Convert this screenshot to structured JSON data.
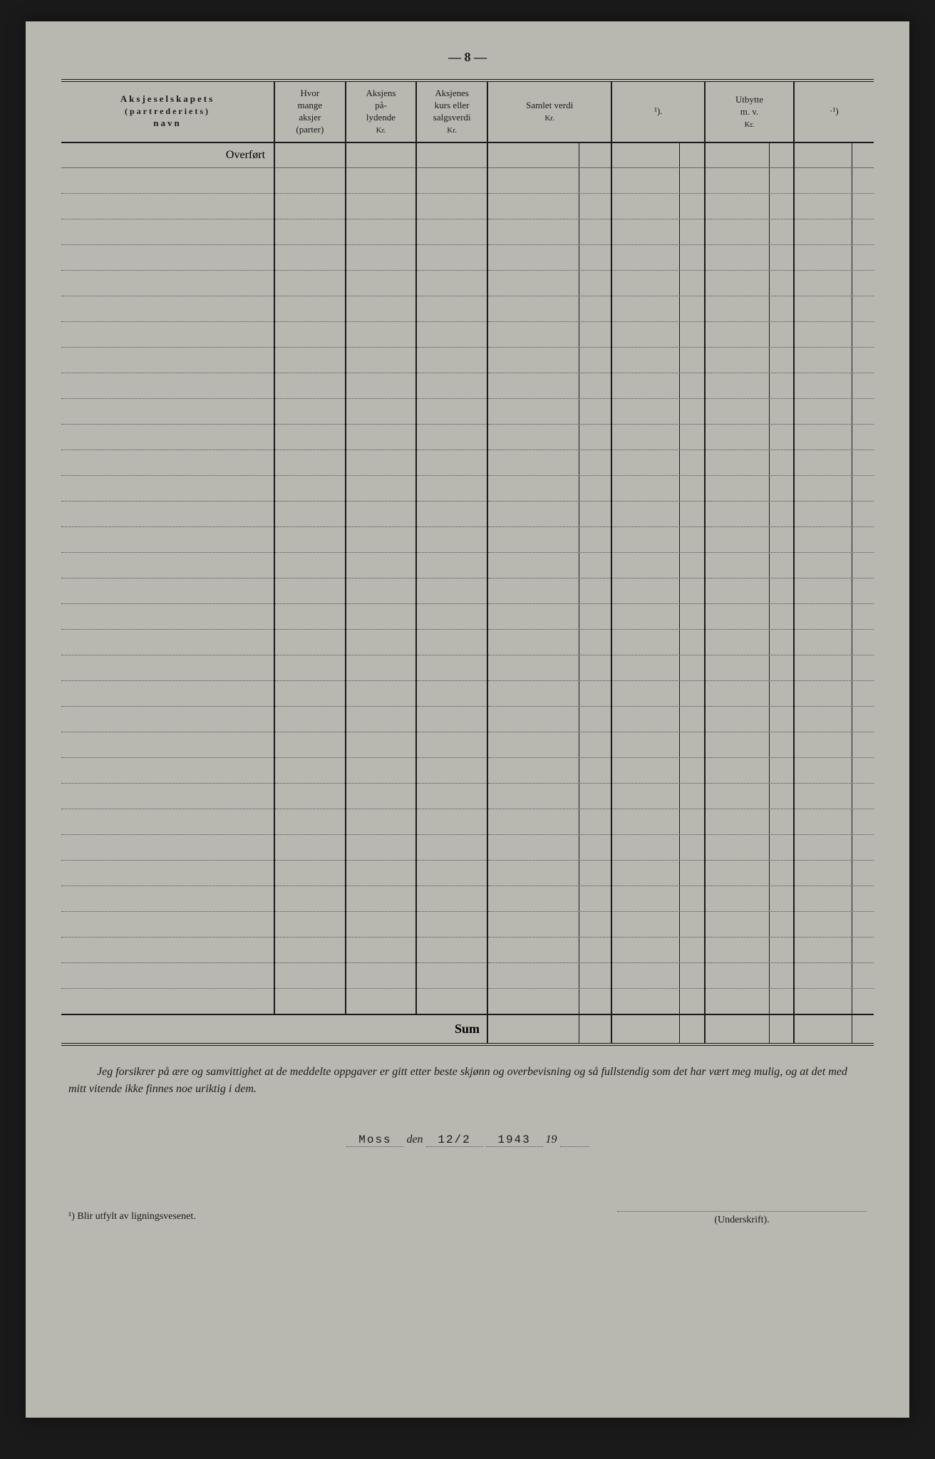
{
  "page_number": "— 8 —",
  "table": {
    "columns": [
      {
        "id": "navn",
        "header_line1": "Aksjeselskapets",
        "header_line2": "(partrederiets)",
        "header_line3": "navn",
        "width": "24%",
        "has_sub": false
      },
      {
        "id": "hvor",
        "header_line1": "Hvor",
        "header_line2": "mange",
        "header_line3": "aksjer",
        "header_line4": "(parter)",
        "width": "8%",
        "has_sub": false
      },
      {
        "id": "aksjens",
        "header_line1": "Aksjens",
        "header_line2": "på-",
        "header_line3": "lydende",
        "sub": "Kr.",
        "width": "8%",
        "has_sub": false
      },
      {
        "id": "aksjenes",
        "header_line1": "Aksjenes",
        "header_line2": "kurs eller",
        "header_line3": "salgsverdi",
        "sub": "Kr.",
        "width": "8%",
        "has_sub": false
      },
      {
        "id": "samlet",
        "header_line1": "Samlet verdi",
        "sub": "Kr.",
        "width": "14%",
        "has_sub": true
      },
      {
        "id": "blank1",
        "header_line1": "¹).",
        "width": "10.5%",
        "has_sub": true
      },
      {
        "id": "utbytte",
        "header_line1": "Utbytte",
        "header_line2": "m. v.",
        "sub": "Kr.",
        "width": "10%",
        "has_sub": true
      },
      {
        "id": "blank2",
        "header_line1": "·¹)",
        "width": "9%",
        "has_sub": true
      }
    ],
    "overfort_label": "Overført",
    "sum_label": "Sum",
    "data_rows": 33
  },
  "declaration": "Jeg forsikrer på ære og samvittighet at de meddelte oppgaver er gitt etter beste skjønn og overbevisning og så fullstendig som det har vært meg mulig, og at det med mitt vitende ikke finnes noe uriktig i dem.",
  "signature": {
    "place": "Moss",
    "den_label": "den",
    "date": "12/2",
    "year_prefix": "19",
    "year_suffix": "43",
    "year_end": "19"
  },
  "footnote": "¹) Blir utfylt av ligningsvesenet.",
  "underskrift_label": "(Underskrift).",
  "colors": {
    "paper": "#b8b8b0",
    "ink": "#1a1a1a",
    "background": "#1a1a1a"
  }
}
